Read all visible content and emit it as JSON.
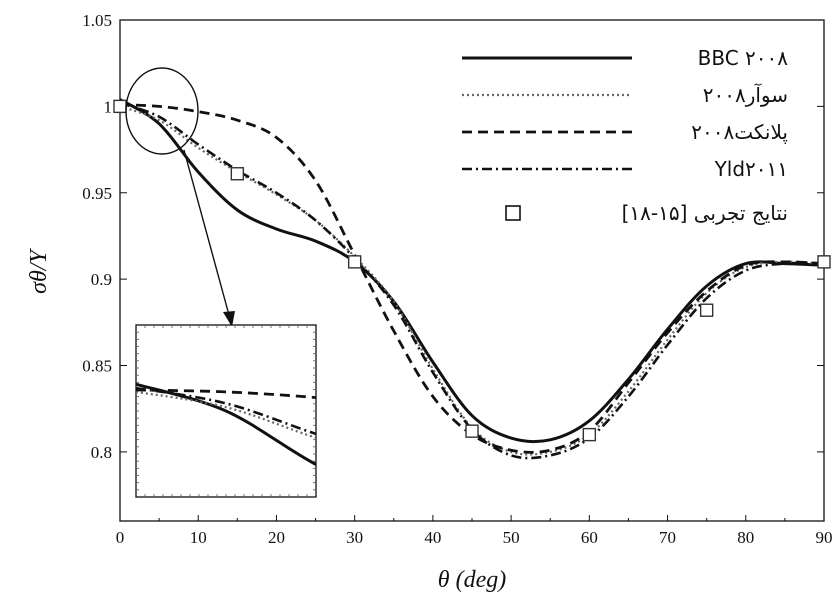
{
  "chart_data": {
    "type": "line",
    "xlabel": "θ (deg)",
    "ylabel": "σθ/Y",
    "xlim": [
      0,
      90
    ],
    "ylim": [
      0.76,
      1.05
    ],
    "x_ticks": [
      "0",
      "10",
      "20",
      "30",
      "40",
      "50",
      "60",
      "70",
      "80",
      "90"
    ],
    "y_ticks": [
      "0.8",
      "0.85",
      "0.9",
      "0.95",
      "1",
      "1.05"
    ],
    "grid": false,
    "legend_position": "top-right",
    "series": [
      {
        "name": "BBC ۲۰۰۸",
        "style": "solid",
        "x": [
          0,
          5,
          10,
          15,
          20,
          25,
          30,
          35,
          40,
          45,
          50,
          55,
          60,
          65,
          70,
          75,
          80,
          85,
          90
        ],
        "y": [
          1.004,
          0.99,
          0.962,
          0.94,
          0.929,
          0.922,
          0.91,
          0.887,
          0.852,
          0.821,
          0.808,
          0.807,
          0.818,
          0.842,
          0.871,
          0.896,
          0.909,
          0.909,
          0.908
        ]
      },
      {
        "name": "سوآر۲۰۰۸",
        "style": "dotted",
        "x": [
          0,
          5,
          10,
          15,
          20,
          25,
          30,
          35,
          40,
          45,
          50,
          55,
          60,
          65,
          70,
          75,
          80,
          85,
          90
        ],
        "y": [
          1.0,
          0.992,
          0.976,
          0.962,
          0.949,
          0.934,
          0.913,
          0.887,
          0.848,
          0.814,
          0.8,
          0.8,
          0.81,
          0.835,
          0.865,
          0.892,
          0.907,
          0.91,
          0.909
        ]
      },
      {
        "name": "پلانکت۲۰۰۸",
        "style": "dashed",
        "x": [
          0,
          5,
          10,
          15,
          20,
          25,
          30,
          35,
          40,
          45,
          50,
          55,
          60,
          65,
          70,
          75,
          80,
          85,
          90
        ],
        "y": [
          1.001,
          1.0,
          0.997,
          0.992,
          0.982,
          0.957,
          0.914,
          0.87,
          0.832,
          0.81,
          0.801,
          0.801,
          0.812,
          0.84,
          0.869,
          0.893,
          0.908,
          0.91,
          0.909
        ]
      },
      {
        "name": "Yld۲۰۱۱",
        "style": "dashdot",
        "x": [
          0,
          5,
          10,
          15,
          20,
          25,
          30,
          35,
          40,
          45,
          50,
          55,
          60,
          65,
          70,
          75,
          80,
          85,
          90
        ],
        "y": [
          1.002,
          0.994,
          0.978,
          0.963,
          0.95,
          0.934,
          0.912,
          0.885,
          0.846,
          0.813,
          0.798,
          0.798,
          0.808,
          0.832,
          0.862,
          0.889,
          0.905,
          0.909,
          0.909
        ]
      },
      {
        "name": "نتایج تجربی [۱۵-۱۸]",
        "style": "markers",
        "x": [
          0,
          15,
          30,
          45,
          60,
          75,
          90
        ],
        "y": [
          1.0,
          0.961,
          0.91,
          0.812,
          0.81,
          0.882,
          0.91
        ]
      }
    ],
    "annotations": [
      "zoom ellipse around θ≈0–10 with arrow to inset magnification"
    ]
  }
}
